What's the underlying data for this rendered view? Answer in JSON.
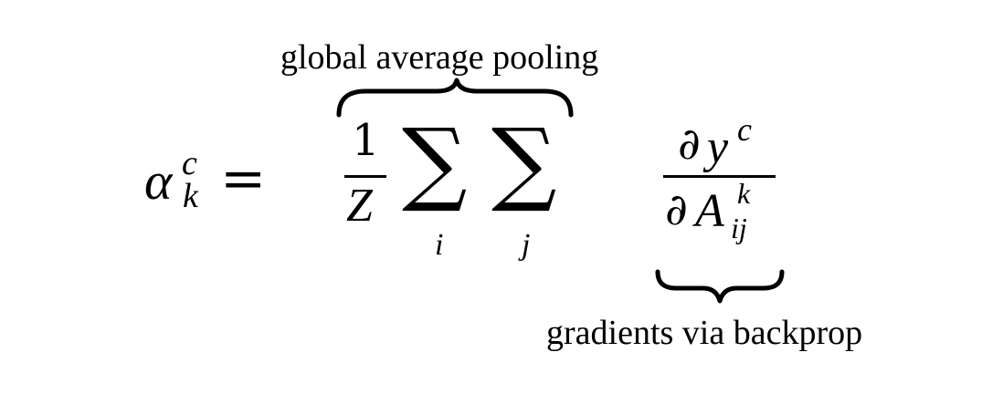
{
  "formula": {
    "lhs": {
      "symbol": "α",
      "superscript": "c",
      "subscript": "k",
      "equals": "="
    },
    "pooling_term": {
      "numerator": "1",
      "denominator": "Z",
      "sum_symbol": "∑",
      "sum1_index": "i",
      "sum2_index": "j"
    },
    "gradient_term": {
      "partial": "∂",
      "numerator_var": "y",
      "numerator_sup": "c",
      "denominator_var": "A",
      "denominator_sup": "k",
      "denominator_sub": "ij"
    }
  },
  "annotations": {
    "top": "global average pooling",
    "bottom": "gradients via backprop"
  }
}
